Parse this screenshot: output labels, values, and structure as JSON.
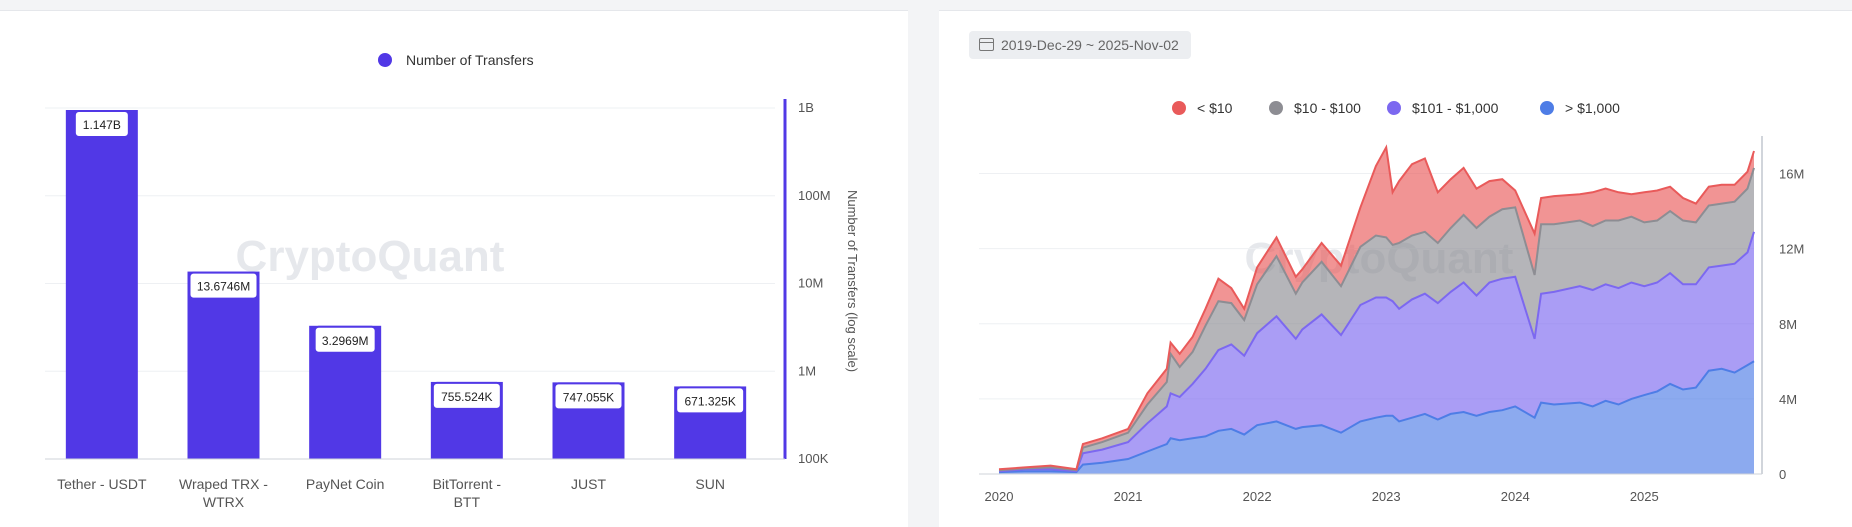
{
  "chart_data": [
    {
      "type": "bar",
      "legend": [
        "Number of Transfers"
      ],
      "categories": [
        "Tether - USDT",
        "Wraped TRX - WTRX",
        "PayNet Coin",
        "BitTorrent - BTT",
        "JUST",
        "SUN"
      ],
      "series": [
        {
          "name": "Number of Transfers",
          "values": [
            1147000000,
            13674600,
            3296900,
            755524,
            747055,
            671325
          ]
        }
      ],
      "data_labels": [
        "1.147B",
        "13.6746M",
        "3.2969M",
        "755.524K",
        "747.055K",
        "671.325K"
      ],
      "ylabel": "Number of Transfers (log scale)",
      "y_scale": "log",
      "ylim": [
        100000,
        1000000000
      ],
      "y_ticks": [
        "100K",
        "1M",
        "10M",
        "100M",
        "1B"
      ],
      "legend_position": "top-center",
      "y_axis_side": "right",
      "watermark": "CryptoQuant",
      "colors": {
        "bar": "#5138e6",
        "label_border": "#5138e6"
      }
    },
    {
      "type": "area",
      "stacked": true,
      "date_range": "2019-Dec-29 ~ 2025-Nov-02",
      "legend": [
        "< $10",
        "$10 - $100",
        "$101 - $1,000",
        "> $1,000"
      ],
      "colors": [
        "#e95a5a",
        "#8d8d93",
        "#7c68f0",
        "#4e7de6"
      ],
      "x_ticks": [
        "2020",
        "2021",
        "2022",
        "2023",
        "2024",
        "2025"
      ],
      "y_ticks": [
        "0",
        "4M",
        "8M",
        "12M",
        "16M"
      ],
      "xlim": [
        2020.0,
        2025.85
      ],
      "ylim": [
        0,
        18000000
      ],
      "legend_position": "top-center",
      "y_axis_side": "right",
      "watermark": "CryptoQuant",
      "x": [
        2020.0,
        2020.2,
        2020.4,
        2020.6,
        2020.65,
        2020.8,
        2021.0,
        2021.15,
        2021.3,
        2021.33,
        2021.4,
        2021.5,
        2021.6,
        2021.7,
        2021.8,
        2021.9,
        2022.0,
        2022.15,
        2022.3,
        2022.35,
        2022.5,
        2022.65,
        2022.8,
        2022.92,
        2023.0,
        2023.05,
        2023.1,
        2023.2,
        2023.3,
        2023.4,
        2023.5,
        2023.6,
        2023.7,
        2023.8,
        2023.9,
        2024.0,
        2024.15,
        2024.2,
        2024.3,
        2024.5,
        2024.6,
        2024.7,
        2024.8,
        2024.9,
        2025.0,
        2025.1,
        2025.2,
        2025.3,
        2025.4,
        2025.5,
        2025.6,
        2025.7,
        2025.8,
        2025.85
      ],
      "series": [
        {
          "name": "> $1,000",
          "values": [
            0.1,
            0.15,
            0.15,
            0.1,
            0.5,
            0.6,
            0.8,
            1.2,
            1.6,
            1.9,
            1.8,
            1.9,
            2.0,
            2.3,
            2.4,
            2.1,
            2.6,
            2.8,
            2.4,
            2.5,
            2.6,
            2.2,
            2.8,
            3.0,
            3.1,
            3.1,
            2.8,
            3.0,
            3.2,
            2.9,
            3.2,
            3.3,
            3.1,
            3.3,
            3.4,
            3.6,
            3.0,
            3.8,
            3.7,
            3.8,
            3.6,
            3.9,
            3.7,
            4.0,
            4.2,
            4.4,
            4.8,
            4.5,
            4.6,
            5.5,
            5.6,
            5.4,
            5.8,
            6.0
          ]
        },
        {
          "name": "$101 - $1,000",
          "values": [
            0.05,
            0.1,
            0.1,
            0.05,
            0.6,
            0.7,
            0.9,
            1.5,
            2.0,
            2.4,
            2.3,
            2.9,
            3.6,
            4.3,
            4.5,
            4.2,
            4.9,
            5.6,
            4.8,
            5.2,
            5.9,
            5.2,
            6.2,
            6.4,
            6.3,
            6.1,
            6.0,
            6.3,
            6.4,
            6.2,
            6.5,
            6.9,
            6.4,
            6.9,
            7.0,
            6.9,
            4.2,
            5.8,
            6.0,
            6.2,
            6.2,
            6.2,
            6.2,
            6.2,
            5.8,
            5.8,
            5.9,
            5.6,
            5.5,
            5.5,
            5.5,
            5.8,
            6.0,
            6.9
          ]
        },
        {
          "name": "$10 - $100",
          "values": [
            0.05,
            0.05,
            0.1,
            0.05,
            0.3,
            0.4,
            0.5,
            1.0,
            1.3,
            2.1,
            1.6,
            1.7,
            2.3,
            2.6,
            2.2,
            1.9,
            2.6,
            3.2,
            2.4,
            2.5,
            2.8,
            2.6,
            3.1,
            3.3,
            3.2,
            3.0,
            3.5,
            3.4,
            3.3,
            3.2,
            3.4,
            3.6,
            3.6,
            3.5,
            3.7,
            3.7,
            3.4,
            3.7,
            3.6,
            3.5,
            3.4,
            3.4,
            3.6,
            3.5,
            3.4,
            3.3,
            3.3,
            3.4,
            3.3,
            3.3,
            3.3,
            3.3,
            3.4,
            3.4
          ]
        },
        {
          "name": "< $10",
          "values": [
            0.05,
            0.05,
            0.1,
            0.05,
            0.2,
            0.2,
            0.2,
            0.6,
            0.7,
            0.6,
            0.7,
            0.8,
            0.9,
            1.2,
            0.8,
            0.6,
            0.9,
            1.0,
            0.9,
            0.7,
            1.0,
            1.1,
            2.1,
            3.7,
            4.8,
            2.8,
            3.3,
            3.8,
            3.9,
            2.7,
            2.6,
            2.5,
            2.1,
            1.9,
            1.6,
            0.9,
            2.2,
            1.4,
            1.5,
            1.4,
            1.8,
            1.7,
            1.5,
            1.2,
            1.6,
            1.6,
            1.3,
            1.2,
            1.0,
            1.0,
            1.0,
            0.9,
            0.9,
            0.9
          ]
        }
      ],
      "values_unit": "millions"
    }
  ]
}
